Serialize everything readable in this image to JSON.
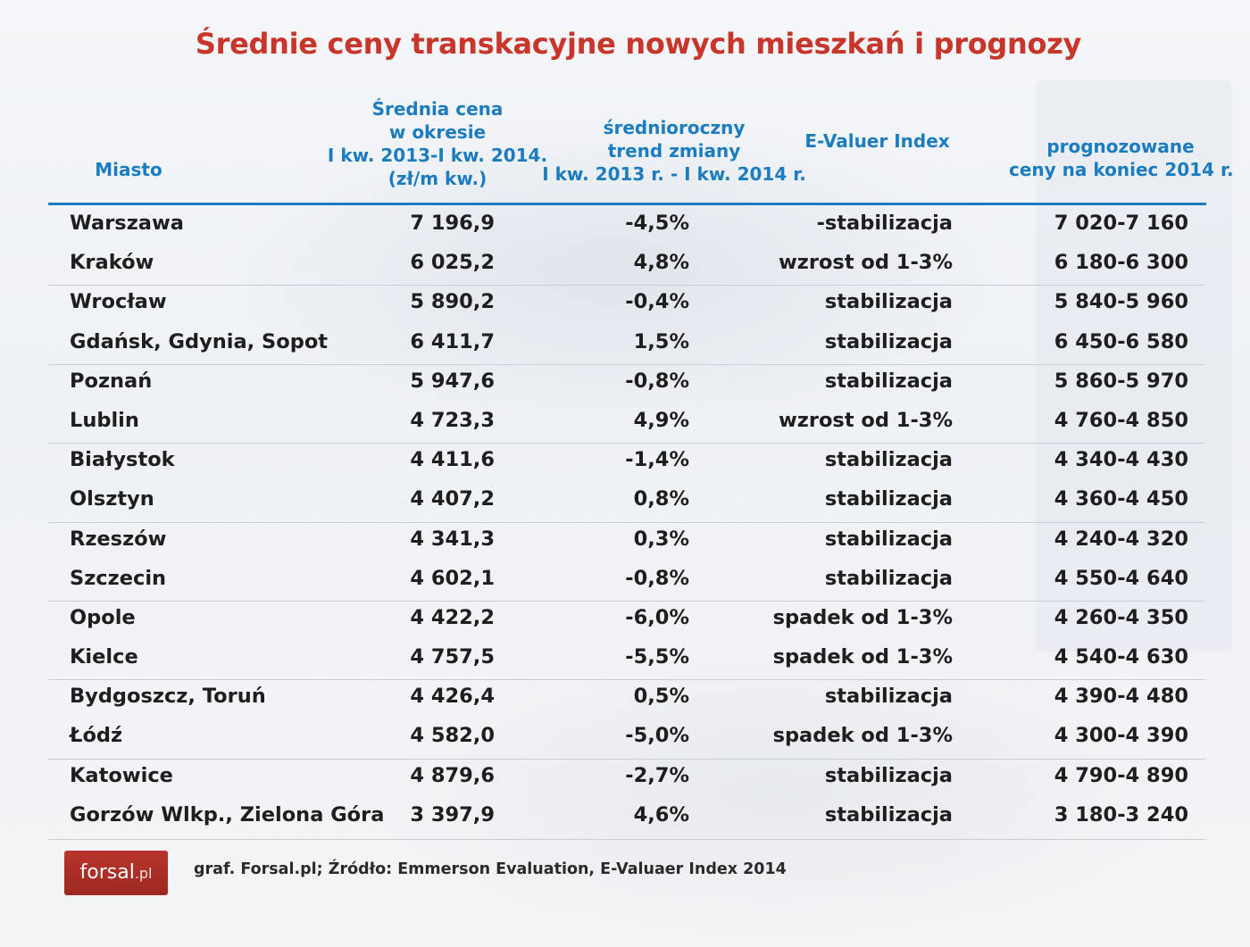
{
  "title": "Średnie ceny transkacyjne nowych mieszkań i prognozy",
  "chart_data": {
    "type": "table",
    "title": "Średnie ceny transkacyjne nowych mieszkań i prognozy",
    "headers": {
      "city": [
        "Miasto"
      ],
      "avg": [
        "Średnia cena",
        "w okresie",
        "I kw. 2013-I kw. 2014.",
        "(zł/m kw.)"
      ],
      "trend": [
        "średnioroczny",
        "trend zmiany",
        "I kw. 2013 r. - I kw. 2014 r."
      ],
      "evi": [
        "E-Valuer Index"
      ],
      "fore": [
        "prognozowane",
        "ceny na koniec 2014 r."
      ]
    },
    "rows": [
      {
        "city": "Warszawa",
        "avg": "7 196,9",
        "trend": "-4,5%",
        "evi": "-stabilizacja",
        "fore": "7 020-7 160"
      },
      {
        "city": "Kraków",
        "avg": "6 025,2",
        "trend": "4,8%",
        "evi": "wzrost od 1-3%",
        "fore": "6 180-6 300"
      },
      {
        "city": "Wrocław",
        "avg": "5 890,2",
        "trend": "-0,4%",
        "evi": "stabilizacja",
        "fore": "5 840-5 960"
      },
      {
        "city": "Gdańsk, Gdynia, Sopot",
        "avg": "6 411,7",
        "trend": "1,5%",
        "evi": "stabilizacja",
        "fore": "6 450-6 580"
      },
      {
        "city": "Poznań",
        "avg": "5 947,6",
        "trend": "-0,8%",
        "evi": "stabilizacja",
        "fore": "5 860-5 970"
      },
      {
        "city": "Lublin",
        "avg": "4 723,3",
        "trend": "4,9%",
        "evi": "wzrost od 1-3%",
        "fore": "4 760-4 850"
      },
      {
        "city": "Białystok",
        "avg": "4 411,6",
        "trend": "-1,4%",
        "evi": "stabilizacja",
        "fore": "4 340-4 430"
      },
      {
        "city": "Olsztyn",
        "avg": "4 407,2",
        "trend": "0,8%",
        "evi": "stabilizacja",
        "fore": "4 360-4 450"
      },
      {
        "city": "Rzeszów",
        "avg": "4 341,3",
        "trend": "0,3%",
        "evi": "stabilizacja",
        "fore": "4 240-4 320"
      },
      {
        "city": "Szczecin",
        "avg": "4 602,1",
        "trend": "-0,8%",
        "evi": "stabilizacja",
        "fore": "4 550-4 640"
      },
      {
        "city": "Opole",
        "avg": "4 422,2",
        "trend": "-6,0%",
        "evi": "spadek od 1-3%",
        "fore": "4 260-4 350"
      },
      {
        "city": "Kielce",
        "avg": "4 757,5",
        "trend": "-5,5%",
        "evi": "spadek od 1-3%",
        "fore": "4 540-4 630"
      },
      {
        "city": "Bydgoszcz, Toruń",
        "avg": "4 426,4",
        "trend": "0,5%",
        "evi": "stabilizacja",
        "fore": "4 390-4 480"
      },
      {
        "city": "Łódź",
        "avg": "4 582,0",
        "trend": "-5,0%",
        "evi": "spadek od 1-3%",
        "fore": "4 300-4 390"
      },
      {
        "city": "Katowice",
        "avg": "4 879,6",
        "trend": "-2,7%",
        "evi": "stabilizacja",
        "fore": "4 790-4 890"
      },
      {
        "city": "Gorzów Wlkp., Zielona Góra",
        "avg": "3 397,9",
        "trend": "4,6%",
        "evi": "stabilizacja",
        "fore": "3 180-3 240"
      }
    ]
  },
  "footer": {
    "logo_main": "forsal",
    "logo_suffix": ".pl",
    "source": "graf. Forsal.pl;  Źródło:  Emmerson Evaluation, E-Valuaer Index 2014"
  },
  "colors": {
    "title": "#c8352b",
    "header": "#1b7cc0",
    "logo_bg": "#b8352c"
  }
}
